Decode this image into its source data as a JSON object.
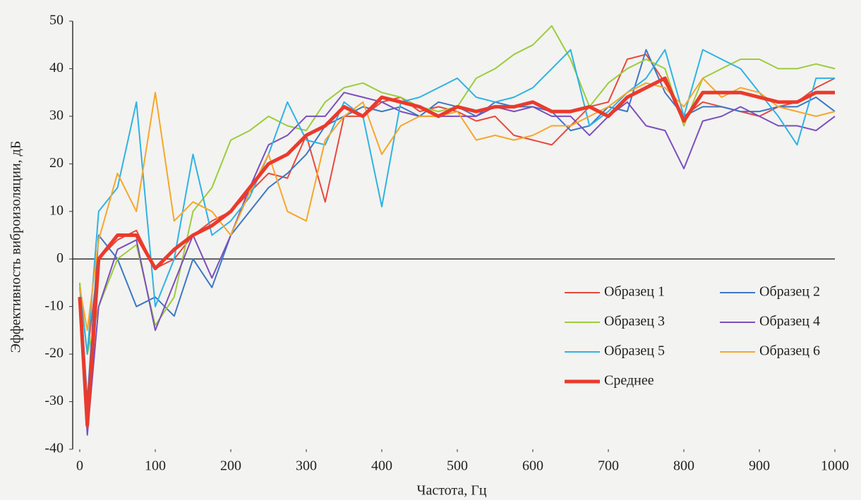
{
  "chart_data": {
    "type": "line",
    "xlabel": "Частота, Гц",
    "ylabel": "Эффективность виброизоляции, дБ",
    "x": [
      0,
      10,
      25,
      50,
      75,
      100,
      125,
      150,
      175,
      200,
      225,
      250,
      275,
      300,
      325,
      350,
      375,
      400,
      425,
      450,
      475,
      500,
      525,
      550,
      575,
      600,
      625,
      650,
      675,
      700,
      725,
      750,
      775,
      800,
      825,
      850,
      875,
      900,
      925,
      950,
      975,
      1000
    ],
    "series": [
      {
        "name": "Образец 1",
        "color": "#e8483c",
        "width": 2,
        "values": [
          -6,
          -20,
          0,
          4,
          6,
          -2,
          0,
          5,
          8,
          10,
          14,
          18,
          17,
          26,
          12,
          30,
          30,
          33,
          34,
          31,
          32,
          31,
          29,
          30,
          26,
          25,
          24,
          28,
          32,
          33,
          42,
          43,
          37,
          30,
          33,
          32,
          31,
          30,
          32,
          33,
          36,
          38
        ]
      },
      {
        "name": "Образец 2",
        "color": "#3b78c4",
        "width": 2,
        "values": [
          -5,
          -30,
          5,
          0,
          -10,
          -8,
          -12,
          0,
          -6,
          5,
          10,
          15,
          18,
          22,
          28,
          30,
          32,
          31,
          32,
          30,
          33,
          32,
          30,
          33,
          32,
          32,
          31,
          27,
          28,
          32,
          31,
          44,
          35,
          30,
          32,
          32,
          31,
          31,
          32,
          32,
          34,
          31
        ]
      },
      {
        "name": "Образец 3",
        "color": "#9ccc3c",
        "width": 2,
        "values": [
          -5,
          -20,
          -10,
          0,
          3,
          -14,
          -8,
          10,
          15,
          25,
          27,
          30,
          28,
          27,
          33,
          36,
          37,
          35,
          34,
          32,
          31,
          32,
          38,
          40,
          43,
          45,
          49,
          42,
          32,
          37,
          40,
          42,
          40,
          28,
          38,
          40,
          42,
          42,
          40,
          40,
          41,
          40
        ]
      },
      {
        "name": "Образец 4",
        "color": "#7a4fbe",
        "width": 2,
        "values": [
          -8,
          -37,
          -10,
          2,
          4,
          -15,
          -5,
          5,
          -4,
          5,
          15,
          24,
          26,
          30,
          30,
          35,
          34,
          33,
          31,
          30,
          30,
          30,
          30,
          32,
          31,
          32,
          30,
          30,
          26,
          30,
          33,
          28,
          27,
          19,
          29,
          30,
          32,
          30,
          28,
          28,
          27,
          30
        ]
      },
      {
        "name": "Образец 5",
        "color": "#2eb3e4",
        "width": 2,
        "values": [
          -6,
          -20,
          10,
          15,
          33,
          -10,
          0,
          22,
          5,
          8,
          13,
          22,
          33,
          25,
          24,
          33,
          30,
          11,
          33,
          34,
          36,
          38,
          34,
          33,
          34,
          36,
          40,
          44,
          28,
          31,
          35,
          38,
          44,
          30,
          44,
          42,
          40,
          35,
          30,
          24,
          38,
          38
        ]
      },
      {
        "name": "Образец 6",
        "color": "#f5a72a",
        "width": 2,
        "values": [
          -6,
          -15,
          4,
          18,
          10,
          35,
          8,
          12,
          10,
          5,
          14,
          22,
          10,
          8,
          25,
          30,
          33,
          22,
          28,
          30,
          30,
          31,
          25,
          26,
          25,
          26,
          28,
          28,
          30,
          32,
          35,
          37,
          36,
          32,
          38,
          34,
          36,
          35,
          32,
          31,
          30,
          31
        ]
      },
      {
        "name": "Среднее",
        "color": "#ea3a2c",
        "width": 5,
        "values": [
          -8,
          -35,
          0,
          5,
          5,
          -2,
          2,
          5,
          7,
          10,
          15,
          20,
          22,
          26,
          28,
          32,
          30,
          34,
          33,
          32,
          30,
          32,
          31,
          32,
          32,
          33,
          31,
          31,
          32,
          30,
          34,
          36,
          38,
          29,
          35,
          35,
          35,
          34,
          33,
          33,
          35,
          35
        ]
      }
    ],
    "xlim": [
      0,
      1000
    ],
    "xticks": [
      0,
      100,
      200,
      300,
      400,
      500,
      600,
      700,
      800,
      900,
      1000
    ],
    "ylim": [
      -40,
      50
    ],
    "yticks": [
      -40,
      -30,
      -20,
      -10,
      0,
      10,
      20,
      30,
      40,
      50
    ],
    "grid": false,
    "legend": "lower right"
  }
}
